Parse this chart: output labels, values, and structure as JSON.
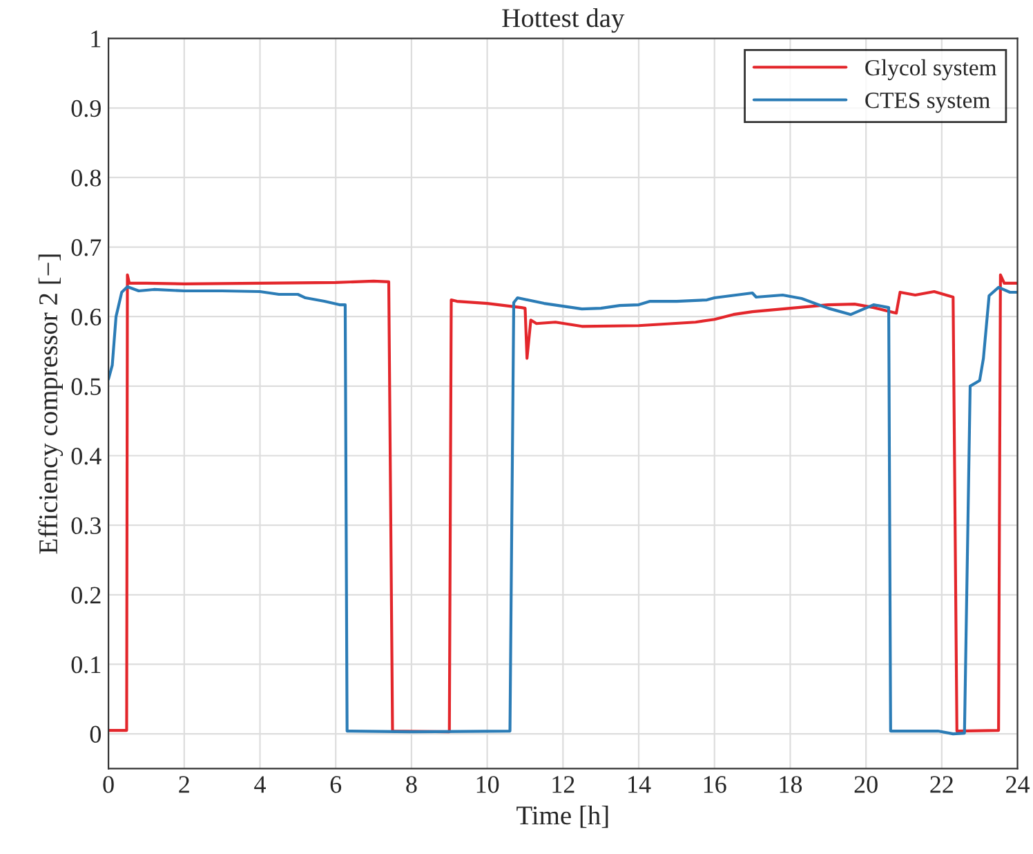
{
  "chart_data": {
    "type": "line",
    "title": "Hottest day",
    "xlabel": "Time [h]",
    "ylabel": "Efficiency compressor 2 [−]",
    "xlim": [
      0,
      24
    ],
    "xticks": [
      0,
      2,
      4,
      6,
      8,
      10,
      12,
      14,
      16,
      18,
      20,
      22,
      24
    ],
    "ylim": [
      -0.05,
      1
    ],
    "yticks": [
      0,
      0.1,
      0.2,
      0.3,
      0.4,
      0.5,
      0.6,
      0.7,
      0.8,
      0.9,
      1
    ],
    "grid": true,
    "legend": "top right",
    "line_style": "solid",
    "series": [
      {
        "name": "Glycol system",
        "color": "#e3262b",
        "x": [
          0,
          0.48,
          0.5,
          0.55,
          1,
          2,
          4,
          6,
          7,
          7.4,
          7.5,
          9.0,
          9.05,
          9.2,
          10,
          10.9,
          11.0,
          11.05,
          11.15,
          11.3,
          11.8,
          12.5,
          14,
          15.5,
          16,
          16.5,
          17,
          18,
          19,
          19.7,
          20.2,
          20.8,
          20.9,
          21.3,
          21.8,
          22.3,
          22.4,
          23.5,
          23.55,
          23.65,
          24
        ],
        "values": [
          0.005,
          0.005,
          0.66,
          0.648,
          0.648,
          0.647,
          0.648,
          0.649,
          0.651,
          0.65,
          0.004,
          0.003,
          0.624,
          0.622,
          0.619,
          0.613,
          0.612,
          0.54,
          0.595,
          0.59,
          0.592,
          0.586,
          0.587,
          0.592,
          0.596,
          0.603,
          0.607,
          0.612,
          0.617,
          0.618,
          0.613,
          0.605,
          0.635,
          0.631,
          0.636,
          0.628,
          0.004,
          0.005,
          0.66,
          0.648,
          0.648
        ]
      },
      {
        "name": "CTES system",
        "color": "#2b7cb6",
        "x": [
          0,
          0.1,
          0.2,
          0.35,
          0.5,
          0.8,
          1.2,
          2,
          3,
          4,
          4.5,
          5,
          5.2,
          5.7,
          6.1,
          6.25,
          6.3,
          8,
          10.6,
          10.7,
          10.8,
          11.5,
          12.5,
          13,
          13.5,
          14,
          14.3,
          15,
          15.8,
          16,
          17,
          17.1,
          17.8,
          18.3,
          19,
          19.6,
          20.2,
          20.6,
          20.65,
          21.9,
          22.3,
          22.6,
          22.75,
          23,
          23.1,
          23.25,
          23.5,
          23.8,
          24
        ],
        "values": [
          0.51,
          0.53,
          0.6,
          0.635,
          0.643,
          0.637,
          0.639,
          0.637,
          0.637,
          0.636,
          0.632,
          0.632,
          0.627,
          0.622,
          0.617,
          0.617,
          0.004,
          0.003,
          0.004,
          0.62,
          0.627,
          0.619,
          0.611,
          0.612,
          0.616,
          0.617,
          0.622,
          0.622,
          0.624,
          0.627,
          0.634,
          0.628,
          0.631,
          0.626,
          0.612,
          0.603,
          0.617,
          0.613,
          0.004,
          0.004,
          0.0,
          0.001,
          0.5,
          0.508,
          0.54,
          0.63,
          0.642,
          0.635,
          0.635
        ]
      }
    ]
  }
}
